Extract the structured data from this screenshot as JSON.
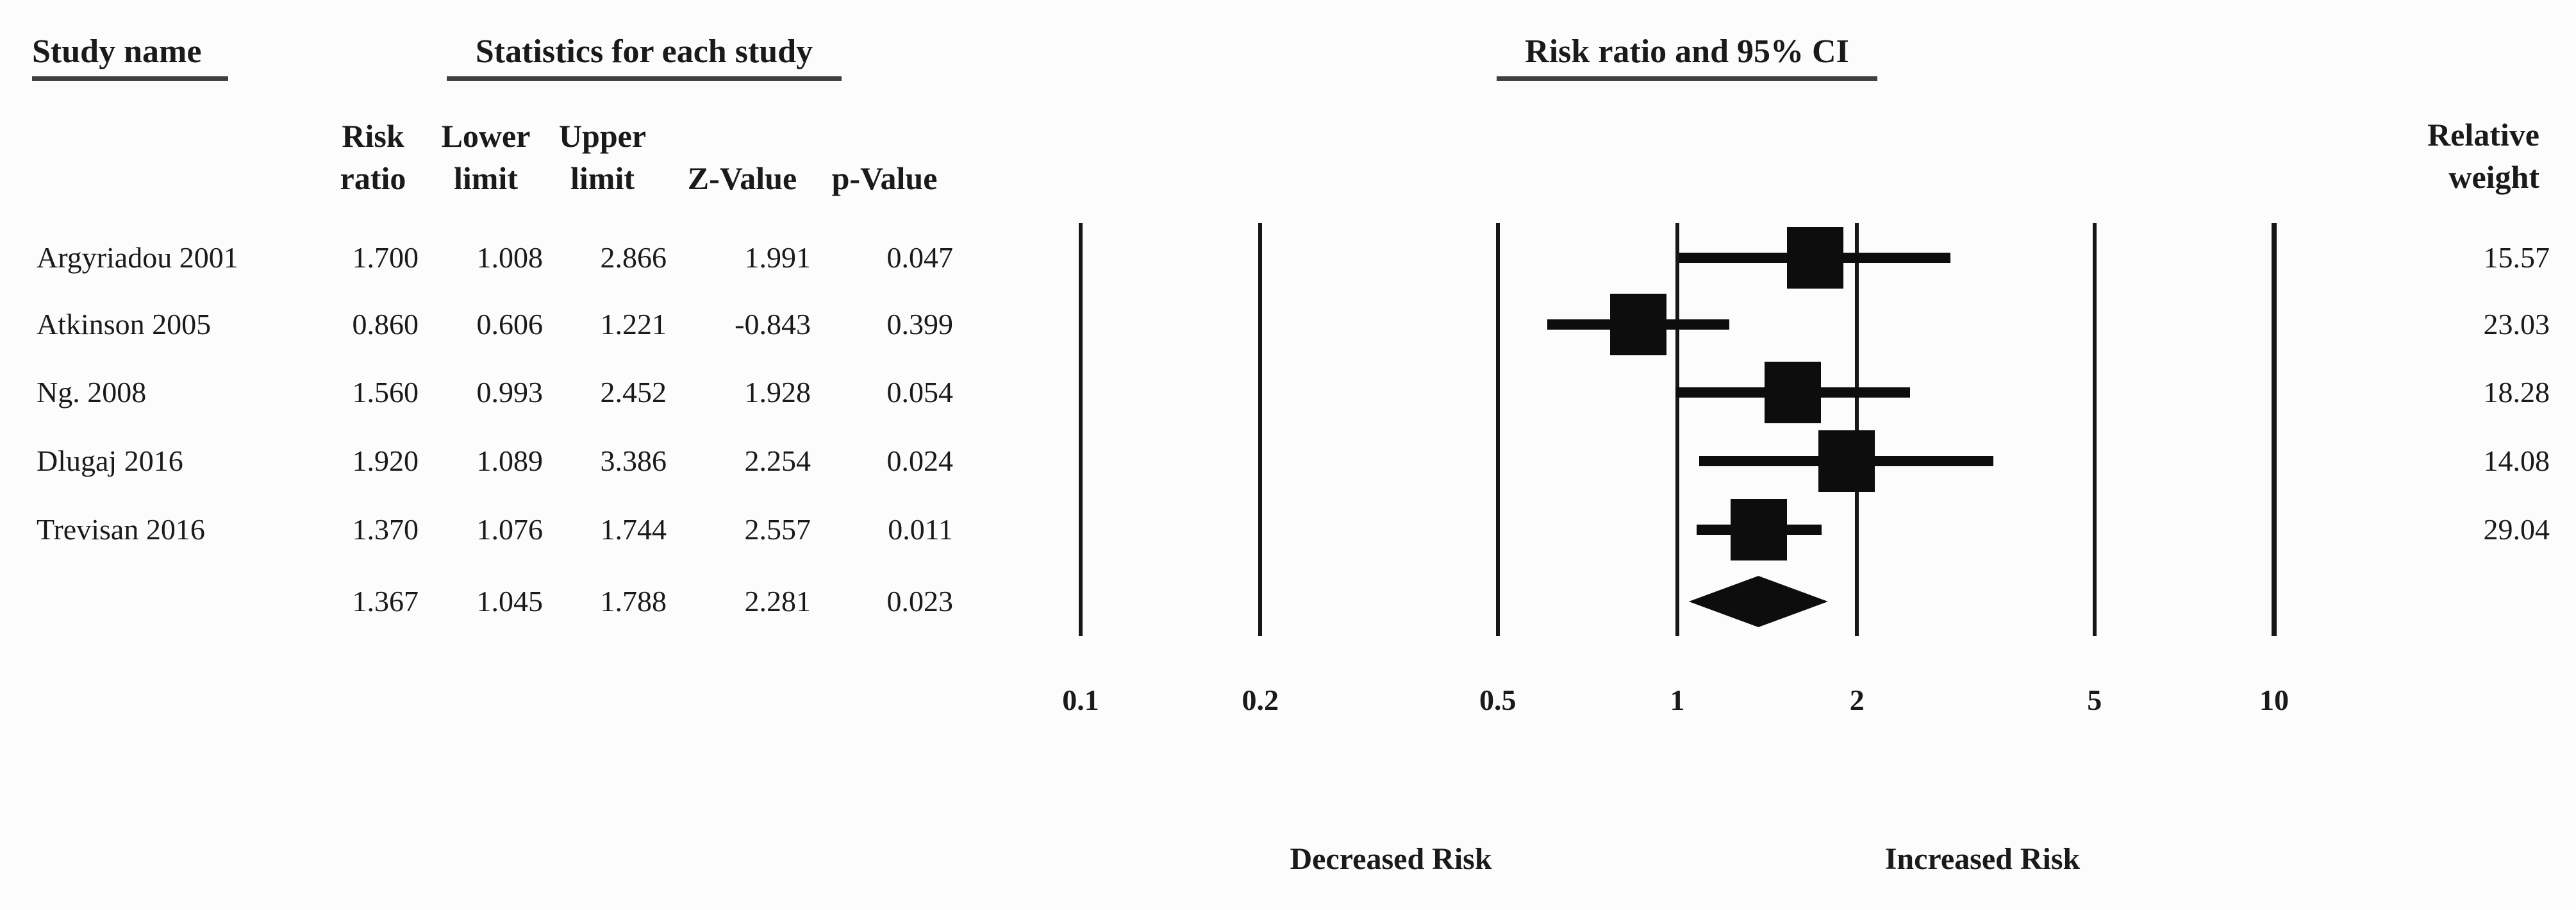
{
  "palette": {
    "background": "#fcfcfc",
    "ink": "#1a1a1a",
    "marker": "#0d0d0d",
    "underline": "#3f3f3f"
  },
  "headers": {
    "study_name": "Study name",
    "statistics": "Statistics for each study",
    "plot": "Risk ratio and 95% CI",
    "relative_weight_line1": "Relative",
    "relative_weight_line2": "weight"
  },
  "columns": {
    "risk_ratio": {
      "line1": "Risk",
      "line2": "ratio"
    },
    "lower_limit": {
      "line1": "Lower",
      "line2": "limit"
    },
    "upper_limit": {
      "line1": "Upper",
      "line2": "limit"
    },
    "z_value": {
      "label": "Z-Value"
    },
    "p_value": {
      "label": "p-Value"
    }
  },
  "chart_data": {
    "type": "forest",
    "title": "Risk ratio and 95% CI",
    "x_axis": {
      "scale": "log",
      "min": 0.1,
      "max": 10,
      "ticks": [
        0.1,
        0.2,
        0.5,
        1,
        2,
        5,
        10
      ],
      "tick_labels": [
        "0.1",
        "0.2",
        "0.5",
        "1",
        "2",
        "5",
        "10"
      ]
    },
    "direction_labels": {
      "left": "Decreased Risk",
      "right": "Increased Risk"
    },
    "grid": true,
    "studies": [
      {
        "name": "Argyriadou 2001",
        "risk_ratio": "1.700",
        "lower_limit": "1.008",
        "upper_limit": "2.866",
        "z_value": "1.991",
        "p_value": "0.047",
        "relative_weight": "15.57",
        "rr": 1.7,
        "lo": 1.008,
        "hi": 2.866,
        "weight": 15.57
      },
      {
        "name": "Atkinson 2005",
        "risk_ratio": "0.860",
        "lower_limit": "0.606",
        "upper_limit": "1.221",
        "z_value": "-0.843",
        "p_value": "0.399",
        "relative_weight": "23.03",
        "rr": 0.86,
        "lo": 0.606,
        "hi": 1.221,
        "weight": 23.03
      },
      {
        "name": "Ng. 2008",
        "risk_ratio": "1.560",
        "lower_limit": "0.993",
        "upper_limit": "2.452",
        "z_value": "1.928",
        "p_value": "0.054",
        "relative_weight": "18.28",
        "rr": 1.56,
        "lo": 0.993,
        "hi": 2.452,
        "weight": 18.28
      },
      {
        "name": "Dlugaj 2016",
        "risk_ratio": "1.920",
        "lower_limit": "1.089",
        "upper_limit": "3.386",
        "z_value": "2.254",
        "p_value": "0.024",
        "relative_weight": "14.08",
        "rr": 1.92,
        "lo": 1.089,
        "hi": 3.386,
        "weight": 14.08
      },
      {
        "name": "Trevisan 2016",
        "risk_ratio": "1.370",
        "lower_limit": "1.076",
        "upper_limit": "1.744",
        "z_value": "2.557",
        "p_value": "0.011",
        "relative_weight": "29.04",
        "rr": 1.37,
        "lo": 1.076,
        "hi": 1.744,
        "weight": 29.04
      }
    ],
    "overall": {
      "risk_ratio": "1.367",
      "lower_limit": "1.045",
      "upper_limit": "1.788",
      "z_value": "2.281",
      "p_value": "0.023",
      "rr": 1.367,
      "lo": 1.045,
      "hi": 1.788
    }
  }
}
